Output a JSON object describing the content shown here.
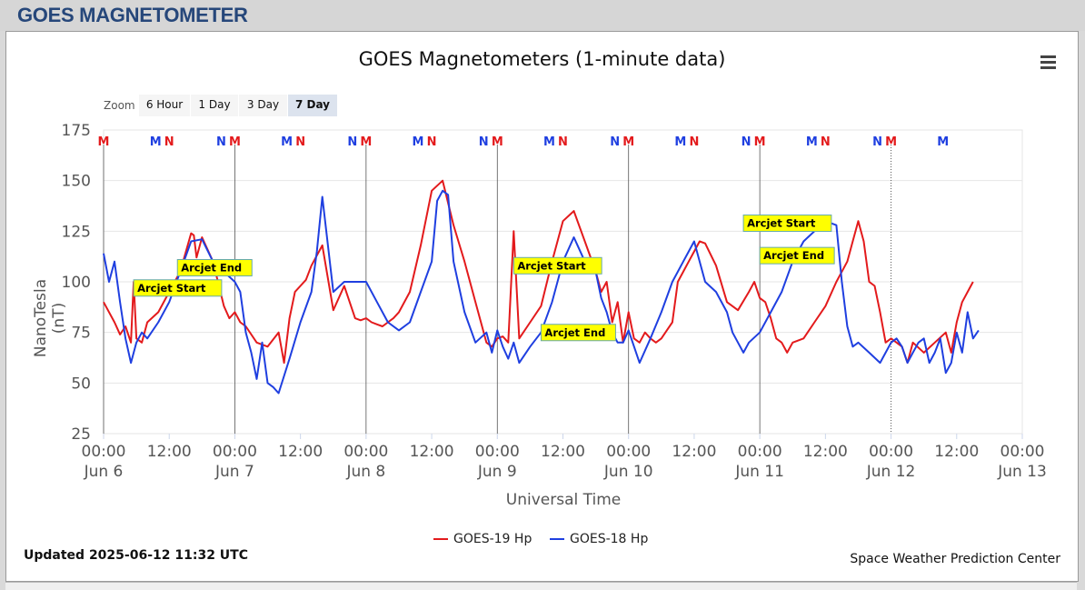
{
  "header": {
    "title": "GOES MAGNETOMETER"
  },
  "chart_data": {
    "type": "line",
    "title": "GOES Magnetometers (1-minute data)",
    "xlabel": "Universal Time",
    "ylabel": "NanoTesla (nT)",
    "ylim": [
      25,
      175
    ],
    "xlim_hours": [
      0,
      168
    ],
    "yticks": [
      "175",
      "150",
      "125",
      "100",
      "75",
      "50",
      "25"
    ],
    "xticks": [
      {
        "time": "00:00",
        "date": "Jun 6"
      },
      {
        "time": "12:00",
        "date": ""
      },
      {
        "time": "00:00",
        "date": "Jun 7"
      },
      {
        "time": "12:00",
        "date": ""
      },
      {
        "time": "00:00",
        "date": "Jun 8"
      },
      {
        "time": "12:00",
        "date": ""
      },
      {
        "time": "00:00",
        "date": "Jun 9"
      },
      {
        "time": "12:00",
        "date": ""
      },
      {
        "time": "00:00",
        "date": "Jun 10"
      },
      {
        "time": "12:00",
        "date": ""
      },
      {
        "time": "00:00",
        "date": "Jun 11"
      },
      {
        "time": "12:00",
        "date": ""
      },
      {
        "time": "00:00",
        "date": "Jun 12"
      },
      {
        "time": "12:00",
        "date": ""
      },
      {
        "time": "00:00",
        "date": "Jun 13"
      }
    ],
    "grid": true,
    "legend_position": "bottom-center",
    "series": [
      {
        "name": "GOES-19 Hp",
        "color": "#e31a1c",
        "x_hours": [
          0,
          2,
          3,
          4,
          5,
          5.5,
          6,
          7,
          8,
          10,
          12,
          14,
          16,
          16.5,
          17,
          18,
          20,
          22,
          23,
          24,
          25,
          26,
          28,
          30,
          32,
          33,
          34,
          35,
          36,
          37,
          38,
          40,
          42,
          44,
          46,
          47,
          48,
          49,
          50,
          51,
          52,
          53,
          54,
          56,
          58,
          60,
          62,
          64,
          66,
          68,
          70,
          71,
          72,
          73,
          74,
          75,
          76,
          78,
          80,
          82,
          84,
          86,
          88,
          90,
          91,
          92,
          93,
          94,
          95,
          96,
          97,
          98,
          99,
          100,
          101,
          102,
          103,
          104,
          105,
          106,
          107,
          108,
          109,
          110,
          112,
          114,
          116,
          118,
          119,
          120,
          121,
          122,
          123,
          124,
          125,
          126,
          128,
          130,
          132,
          134,
          136,
          137,
          138,
          139,
          140,
          141,
          142,
          143,
          144,
          145,
          146,
          147,
          148,
          150,
          152,
          154,
          155,
          156,
          157,
          158,
          159
        ],
        "y": [
          90,
          80,
          74,
          78,
          70,
          100,
          72,
          70,
          80,
          85,
          95,
          105,
          124,
          123,
          112,
          122,
          110,
          88,
          82,
          85,
          80,
          78,
          70,
          68,
          75,
          60,
          82,
          95,
          98,
          101,
          108,
          118,
          86,
          98,
          82,
          81,
          82,
          80,
          79,
          78,
          80,
          82,
          85,
          95,
          118,
          145,
          150,
          128,
          110,
          90,
          70,
          68,
          72,
          73,
          70,
          125,
          72,
          80,
          88,
          110,
          130,
          135,
          120,
          105,
          95,
          100,
          80,
          90,
          70,
          85,
          72,
          70,
          75,
          72,
          70,
          72,
          76,
          80,
          100,
          105,
          110,
          115,
          120,
          119,
          108,
          90,
          86,
          95,
          100,
          92,
          90,
          82,
          72,
          70,
          65,
          70,
          72,
          80,
          88,
          100,
          110,
          120,
          130,
          120,
          100,
          98,
          85,
          70,
          72,
          70,
          68,
          60,
          70,
          65,
          70,
          75,
          65,
          80,
          90,
          95,
          100
        ]
      },
      {
        "name": "GOES-18 Hp",
        "color": "#1f3fe0",
        "x_hours": [
          0,
          1,
          2,
          3,
          4,
          5,
          6,
          7,
          8,
          10,
          12,
          14,
          16,
          18,
          20,
          22,
          24,
          25,
          26,
          27,
          28,
          29,
          30,
          31,
          32,
          34,
          36,
          38,
          39,
          40,
          42,
          44,
          46,
          48,
          50,
          52,
          54,
          56,
          58,
          60,
          61,
          62,
          63,
          64,
          66,
          68,
          70,
          71,
          72,
          73,
          74,
          75,
          76,
          78,
          80,
          82,
          84,
          86,
          88,
          90,
          91,
          92,
          93,
          94,
          95,
          96,
          98,
          100,
          102,
          104,
          105,
          106,
          107,
          108,
          110,
          112,
          114,
          115,
          116,
          117,
          118,
          120,
          122,
          124,
          126,
          128,
          130,
          132,
          134,
          135,
          136,
          137,
          138,
          140,
          142,
          144,
          145,
          146,
          147,
          148,
          149,
          150,
          151,
          152,
          153,
          154,
          155,
          156,
          157,
          158,
          159,
          160
        ],
        "y": [
          114,
          100,
          110,
          90,
          72,
          60,
          70,
          75,
          72,
          80,
          90,
          105,
          120,
          121,
          110,
          105,
          100,
          95,
          75,
          65,
          52,
          70,
          50,
          48,
          45,
          62,
          80,
          95,
          115,
          142,
          95,
          100,
          100,
          100,
          90,
          80,
          76,
          80,
          95,
          110,
          140,
          145,
          143,
          110,
          85,
          70,
          75,
          65,
          76,
          68,
          62,
          70,
          60,
          68,
          75,
          90,
          110,
          122,
          110,
          105,
          92,
          85,
          75,
          70,
          70,
          76,
          60,
          72,
          85,
          100,
          105,
          110,
          115,
          120,
          100,
          95,
          85,
          75,
          70,
          65,
          70,
          75,
          85,
          95,
          110,
          120,
          125,
          130,
          128,
          100,
          78,
          68,
          70,
          65,
          60,
          70,
          72,
          68,
          60,
          65,
          70,
          72,
          60,
          65,
          72,
          55,
          60,
          75,
          65,
          85,
          72,
          76
        ]
      }
    ],
    "annotations": [
      {
        "label": "Arcjet Start",
        "x_hour": 5.5,
        "y": 101
      },
      {
        "label": "Arcjet End",
        "x_hour": 13.5,
        "y": 111
      },
      {
        "label": "Arcjet Start",
        "x_hour": 75,
        "y": 112
      },
      {
        "label": "Arcjet End",
        "x_hour": 80,
        "y": 79
      },
      {
        "label": "Arcjet Start",
        "x_hour": 117,
        "y": 133
      },
      {
        "label": "Arcjet End",
        "x_hour": 120,
        "y": 117
      }
    ],
    "markers": [
      {
        "label": "M",
        "x_hour": 0,
        "color": "#e31a1c"
      },
      {
        "label": "M",
        "x_hour": 9.5,
        "color": "#1f3fe0"
      },
      {
        "label": "N",
        "x_hour": 12,
        "color": "#e31a1c"
      },
      {
        "label": "N",
        "x_hour": 21.5,
        "color": "#1f3fe0"
      },
      {
        "label": "M",
        "x_hour": 24,
        "color": "#e31a1c"
      },
      {
        "label": "M",
        "x_hour": 33.5,
        "color": "#1f3fe0"
      },
      {
        "label": "N",
        "x_hour": 36,
        "color": "#e31a1c"
      },
      {
        "label": "N",
        "x_hour": 45.5,
        "color": "#1f3fe0"
      },
      {
        "label": "M",
        "x_hour": 48,
        "color": "#e31a1c"
      },
      {
        "label": "M",
        "x_hour": 57.5,
        "color": "#1f3fe0"
      },
      {
        "label": "N",
        "x_hour": 60,
        "color": "#e31a1c"
      },
      {
        "label": "N",
        "x_hour": 69.5,
        "color": "#1f3fe0"
      },
      {
        "label": "M",
        "x_hour": 72,
        "color": "#e31a1c"
      },
      {
        "label": "M",
        "x_hour": 81.5,
        "color": "#1f3fe0"
      },
      {
        "label": "N",
        "x_hour": 84,
        "color": "#e31a1c"
      },
      {
        "label": "N",
        "x_hour": 93.5,
        "color": "#1f3fe0"
      },
      {
        "label": "M",
        "x_hour": 96,
        "color": "#e31a1c"
      },
      {
        "label": "M",
        "x_hour": 105.5,
        "color": "#1f3fe0"
      },
      {
        "label": "N",
        "x_hour": 108,
        "color": "#e31a1c"
      },
      {
        "label": "N",
        "x_hour": 117.5,
        "color": "#1f3fe0"
      },
      {
        "label": "M",
        "x_hour": 120,
        "color": "#e31a1c"
      },
      {
        "label": "M",
        "x_hour": 129.5,
        "color": "#1f3fe0"
      },
      {
        "label": "N",
        "x_hour": 132,
        "color": "#e31a1c"
      },
      {
        "label": "N",
        "x_hour": 141.5,
        "color": "#1f3fe0"
      },
      {
        "label": "M",
        "x_hour": 144,
        "color": "#e31a1c"
      },
      {
        "label": "M",
        "x_hour": 153.5,
        "color": "#1f3fe0"
      }
    ],
    "day_lines_hours": [
      24,
      48,
      72,
      96,
      120
    ],
    "now_line_hour": 144
  },
  "zoom": {
    "label": "Zoom",
    "options": [
      "6 Hour",
      "1 Day",
      "3 Day",
      "7 Day"
    ],
    "active": "7 Day"
  },
  "footer": {
    "updated": "Updated 2025-06-12 11:32 UTC",
    "credit": "Space Weather Prediction Center"
  },
  "icons": {
    "menu": "hamburger-menu-icon"
  }
}
